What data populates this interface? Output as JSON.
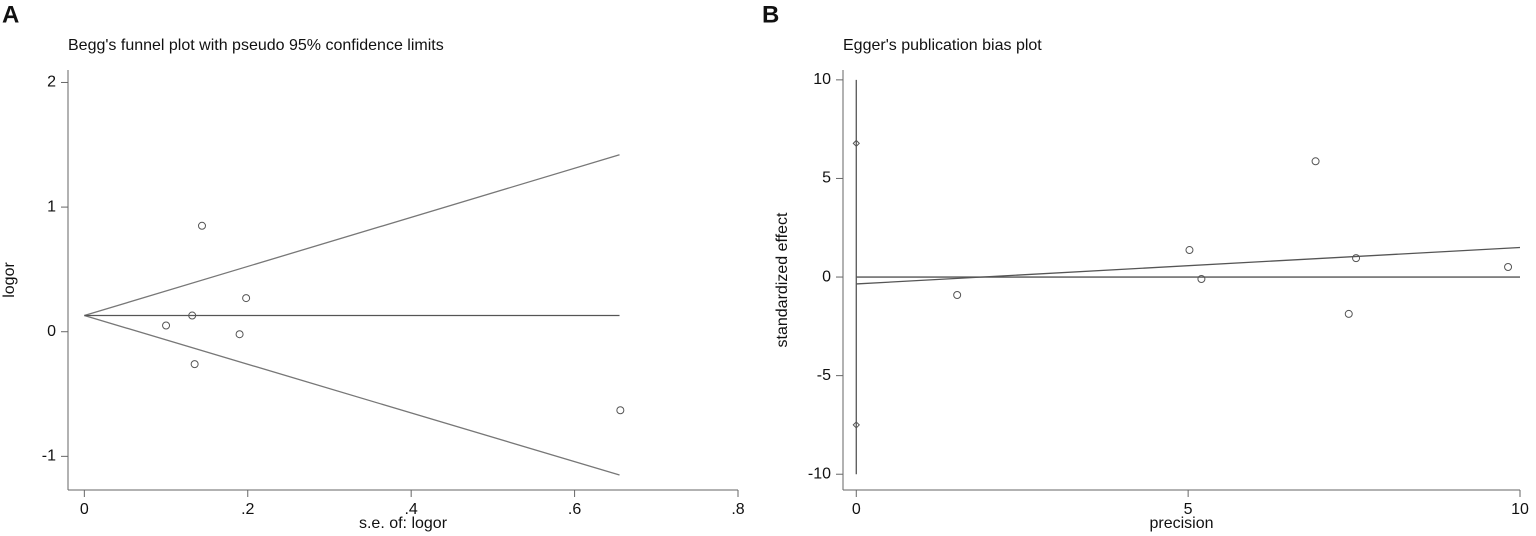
{
  "panels": [
    "A",
    "B"
  ],
  "chart_data": [
    {
      "type": "scatter",
      "title": "Begg's funnel plot with pseudo 95% confidence limits",
      "x_label": "s.e. of: logor",
      "y_label": "logor",
      "xlim": [
        -0.02,
        0.8
      ],
      "ylim": [
        -1.27,
        2.1
      ],
      "xticks": [
        0,
        {
          "value": 0.2,
          "label": ".2"
        },
        {
          "value": 0.4,
          "label": ".4"
        },
        {
          "value": 0.6,
          "label": ".6"
        },
        {
          "value": 0.8,
          "label": ".8"
        }
      ],
      "yticks": [
        -1,
        0,
        1,
        2
      ],
      "series": [
        {
          "marker": "circle",
          "color": "#555555",
          "x": [
            0.1,
            0.132,
            0.144,
            0.135,
            0.19,
            0.198,
            0.656
          ],
          "values": [
            0.05,
            0.13,
            0.85,
            -0.26,
            -0.02,
            0.27,
            -0.63
          ]
        }
      ],
      "lines": [
        {
          "color": "#777777",
          "x": [
            0,
            0.655
          ],
          "values": [
            0.13,
            1.42
          ]
        },
        {
          "color": "#777777",
          "x": [
            0,
            0.655
          ],
          "values": [
            0.13,
            -1.15
          ]
        },
        {
          "color": "#555555",
          "x": [
            0,
            0.655
          ],
          "values": [
            0.13,
            0.13
          ]
        }
      ]
    },
    {
      "type": "scatter",
      "title": "Egger's publication bias plot",
      "x_label": "precision",
      "y_label": "standardized effect",
      "xlim": [
        -0.2,
        10
      ],
      "ylim": [
        -10.8,
        10.5
      ],
      "xticks": [
        0,
        5,
        10
      ],
      "yticks": [
        -10,
        -5,
        0,
        5,
        10
      ],
      "series": [
        {
          "marker": "diamond",
          "color": "#555555",
          "x": [
            0,
            0
          ],
          "values": [
            6.78,
            -7.5
          ]
        },
        {
          "marker": "circle",
          "color": "#555555",
          "x": [
            1.52,
            5.02,
            5.2,
            6.92,
            7.42,
            7.53,
            9.82
          ],
          "values": [
            -0.91,
            1.37,
            -0.1,
            5.87,
            -1.87,
            0.96,
            0.51
          ]
        }
      ],
      "lines": [
        {
          "color": "#555555",
          "x": [
            0,
            0
          ],
          "values": [
            -10,
            10
          ]
        },
        {
          "color": "#555555",
          "x": [
            0,
            10
          ],
          "values": [
            0,
            0
          ]
        },
        {
          "color": "#555555",
          "x": [
            0,
            10
          ],
          "values": [
            -0.35,
            1.5
          ]
        }
      ]
    }
  ]
}
